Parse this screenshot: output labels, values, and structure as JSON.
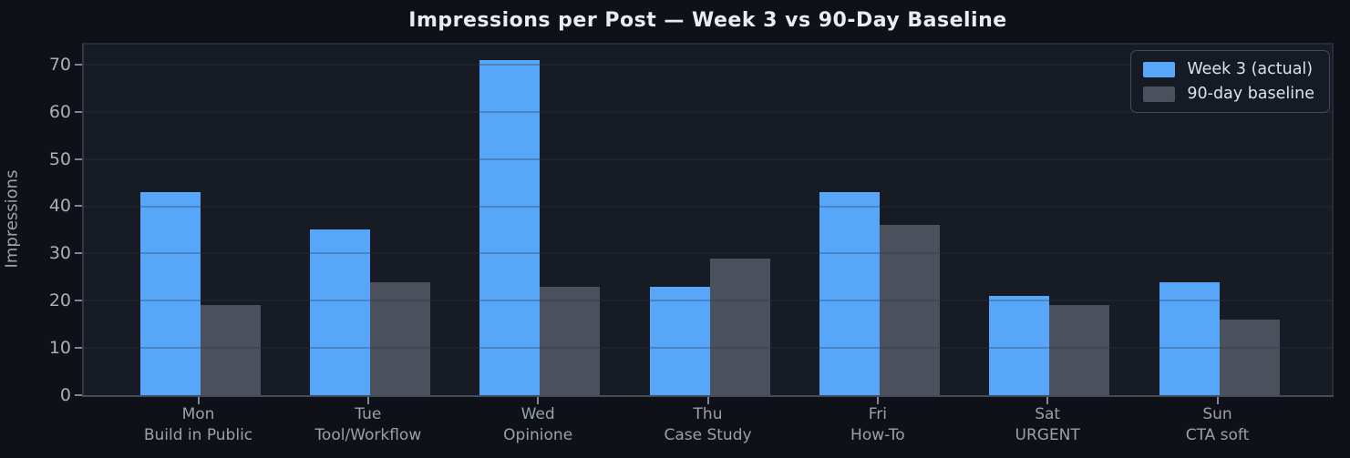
{
  "chart_data": {
    "type": "bar",
    "title": "Impressions per Post — Week 3 vs 90-Day Baseline",
    "xlabel": "",
    "ylabel": "Impressions",
    "categories": [
      {
        "day": "Mon",
        "topic": "Build in Public"
      },
      {
        "day": "Tue",
        "topic": "Tool/Workflow"
      },
      {
        "day": "Wed",
        "topic": "Opinione"
      },
      {
        "day": "Thu",
        "topic": "Case Study"
      },
      {
        "day": "Fri",
        "topic": "How-To"
      },
      {
        "day": "Sat",
        "topic": "URGENT"
      },
      {
        "day": "Sun",
        "topic": "CTA soft"
      }
    ],
    "series": [
      {
        "name": "Week 3 (actual)",
        "color": "#57a6fa",
        "values": [
          43,
          35,
          71,
          23,
          43,
          21,
          24
        ]
      },
      {
        "name": "90-day baseline",
        "color": "#4a505c",
        "values": [
          19,
          24,
          23,
          29,
          36,
          19,
          16
        ]
      }
    ],
    "yticks": [
      0,
      10,
      20,
      30,
      40,
      50,
      60,
      70
    ],
    "ylim": [
      0,
      74.6
    ],
    "grid": true,
    "legend_position": "upper right"
  },
  "colors": {
    "figure_background": "#0e1117",
    "axes_background": "#171b23",
    "week3_blue": "#57a6fa",
    "baseline_gray": "#4a505c",
    "title_text": "#e9edf3",
    "tick_text": "#a9b0bb",
    "x_label_text": "#99a1ab",
    "gridline": "rgba(45,52,67,0.30)",
    "legend_border": "#444b5c",
    "legend_text": "#dde2e9"
  }
}
